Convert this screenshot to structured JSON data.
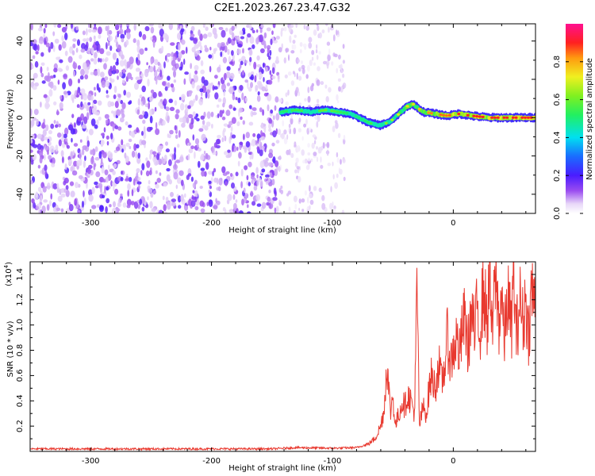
{
  "title": "C2E1.2023.267.23.47.G32",
  "chart_data": [
    {
      "type": "heatmap",
      "xlabel": "Height of straight line (km)",
      "ylabel": "Frequency (Hz)",
      "xlim": [
        -350,
        68
      ],
      "ylim": [
        -50,
        49
      ],
      "xticks": [
        -300,
        -200,
        -100,
        0
      ],
      "yticks": [
        -40,
        -20,
        0,
        20,
        40
      ],
      "colorbar": {
        "label": "Normalized spectral amplitude",
        "range": [
          0.0,
          1.0
        ],
        "ticks": [
          0.0,
          0.2,
          0.4,
          0.6,
          0.8
        ],
        "colormap": "white-violet-blue-cyan-green-yellow-orange-red-magenta"
      },
      "signal_track": {
        "description": "strong narrow spectral line",
        "x": [
          -143,
          -130,
          -118,
          -105,
          -95,
          -85,
          -75,
          -68,
          -60,
          -52,
          -45,
          -38,
          -33,
          -25,
          -15,
          -5,
          5,
          15,
          30,
          45,
          60,
          68
        ],
        "y": [
          3,
          4,
          3,
          4,
          3,
          2,
          -1,
          -3,
          -4,
          -2,
          2,
          6,
          7,
          3,
          2,
          1,
          2,
          1,
          0,
          0,
          0,
          0
        ],
        "amplitude": [
          0.5,
          0.55,
          0.55,
          0.6,
          0.55,
          0.5,
          0.5,
          0.55,
          0.6,
          0.65,
          0.7,
          0.75,
          0.75,
          0.8,
          0.85,
          0.85,
          0.9,
          0.9,
          0.9,
          0.9,
          0.9,
          0.9
        ]
      },
      "noise_region": {
        "x_from": -350,
        "x_to": -145,
        "amplitude_range": [
          0.05,
          0.2
        ]
      },
      "sparse_noise_region": {
        "x_from": -145,
        "x_to": -90,
        "amplitude_range": [
          0.02,
          0.08
        ]
      }
    },
    {
      "type": "line",
      "xlabel": "Height of straight line (km)",
      "ylabel": "SNR (10 * v/v)",
      "yscale_label": "(x10",
      "yscale_exp": "4",
      "yscale_close": ")",
      "xlim": [
        -350,
        68
      ],
      "ylim": [
        0,
        1.5
      ],
      "xticks": [
        -300,
        -200,
        -100,
        0
      ],
      "yticks": [
        0.2,
        0.4,
        0.6,
        0.8,
        1.0,
        1.2,
        1.4
      ],
      "color": "#e8392f",
      "series": [
        {
          "x": [
            -350,
            -300,
            -250,
            -200,
            -150,
            -140,
            -130,
            -100,
            -80,
            -70,
            -65,
            -60,
            -57,
            -55,
            -52,
            -50,
            -48,
            -45,
            -42,
            -40,
            -38,
            -35,
            -32,
            -30,
            -28,
            -25,
            -22,
            -20,
            -18,
            -15,
            -12,
            -10,
            -8,
            -5,
            -2,
            0,
            3,
            5,
            8,
            10,
            12,
            15,
            18,
            20,
            22,
            25,
            28,
            30,
            32,
            35,
            38,
            40,
            42,
            45,
            48,
            50,
            52,
            55,
            58,
            60,
            62,
            65,
            68
          ],
          "y": [
            0.02,
            0.02,
            0.02,
            0.02,
            0.02,
            0.025,
            0.03,
            0.025,
            0.03,
            0.06,
            0.1,
            0.2,
            0.35,
            0.72,
            0.3,
            0.45,
            0.2,
            0.3,
            0.4,
            0.35,
            0.45,
            0.4,
            0.3,
            1.3,
            0.2,
            0.35,
            0.3,
            0.5,
            0.6,
            0.5,
            0.7,
            0.55,
            0.6,
            0.9,
            0.7,
            0.8,
            0.9,
            0.75,
            1.0,
            1.05,
            0.8,
            1.1,
            0.9,
            1.2,
            0.95,
            1.3,
            1.0,
            1.45,
            0.9,
            1.4,
            1.0,
            1.3,
            0.85,
            1.25,
            0.95,
            1.4,
            0.9,
            1.2,
            1.0,
            1.25,
            0.9,
            1.3,
            1.1
          ]
        }
      ]
    }
  ]
}
